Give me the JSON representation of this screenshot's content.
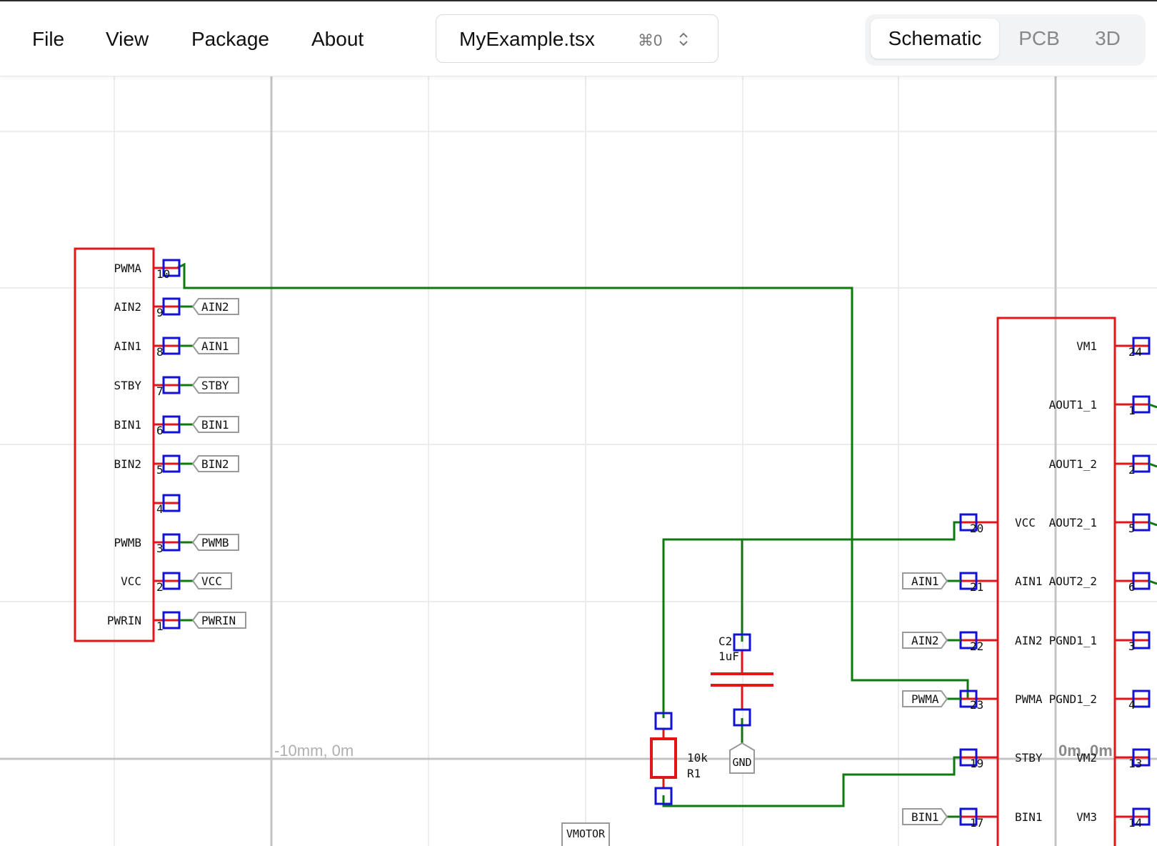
{
  "menu": {
    "file": "File",
    "view": "View",
    "package": "Package",
    "about": "About"
  },
  "file_tab": {
    "name": "MyExample.tsx",
    "shortcut": "⌘0"
  },
  "view_switch": {
    "schematic": "Schematic",
    "pcb": "PCB",
    "threed": "3D",
    "active": "Schematic"
  },
  "canvas": {
    "coord_left": "-10mm, 0m",
    "coord_origin": "0m, 0m",
    "left_chip": {
      "pins": [
        {
          "label": "PWMA",
          "num": "10",
          "net": ""
        },
        {
          "label": "AIN2",
          "num": "9",
          "net": "AIN2"
        },
        {
          "label": "AIN1",
          "num": "8",
          "net": "AIN1"
        },
        {
          "label": "STBY",
          "num": "7",
          "net": "STBY"
        },
        {
          "label": "BIN1",
          "num": "6",
          "net": "BIN1"
        },
        {
          "label": "BIN2",
          "num": "5",
          "net": "BIN2"
        },
        {
          "label": "",
          "num": "4",
          "net": ""
        },
        {
          "label": "PWMB",
          "num": "3",
          "net": "PWMB"
        },
        {
          "label": "VCC",
          "num": "2",
          "net": "VCC"
        },
        {
          "label": "PWRIN",
          "num": "1",
          "net": "PWRIN"
        }
      ]
    },
    "right_chip": {
      "left_pins": [
        {
          "label": "VCC",
          "num": "20",
          "net": ""
        },
        {
          "label": "AIN1",
          "num": "21",
          "net": "AIN1"
        },
        {
          "label": "AIN2",
          "num": "22",
          "net": "AIN2"
        },
        {
          "label": "PWMA",
          "num": "23",
          "net": "PWMA"
        },
        {
          "label": "STBY",
          "num": "19",
          "net": ""
        },
        {
          "label": "BIN1",
          "num": "17",
          "net": "BIN1"
        }
      ],
      "right_pins": [
        {
          "label": "VM1",
          "num": "24"
        },
        {
          "label": "AOUT1_1",
          "num": "1"
        },
        {
          "label": "AOUT1_2",
          "num": "2"
        },
        {
          "label": "AOUT2_1",
          "num": "5"
        },
        {
          "label": "AOUT2_2",
          "num": "6"
        },
        {
          "label": "PGND1_1",
          "num": "3"
        },
        {
          "label": "PGND1_2",
          "num": "4"
        },
        {
          "label": "VM2",
          "num": "13"
        },
        {
          "label": "VM3",
          "num": "14"
        }
      ]
    },
    "capacitor": {
      "name": "C2",
      "value": "1uF"
    },
    "resistor": {
      "name": "R1",
      "value": "10k"
    },
    "gnd": "GND",
    "vmotor": "VMOTOR"
  },
  "colors": {
    "component": "#e0161b",
    "pin": "#1212d6",
    "wire": "#0e7a0e",
    "grid": "#ececec",
    "axis": "#c4c4c4"
  }
}
